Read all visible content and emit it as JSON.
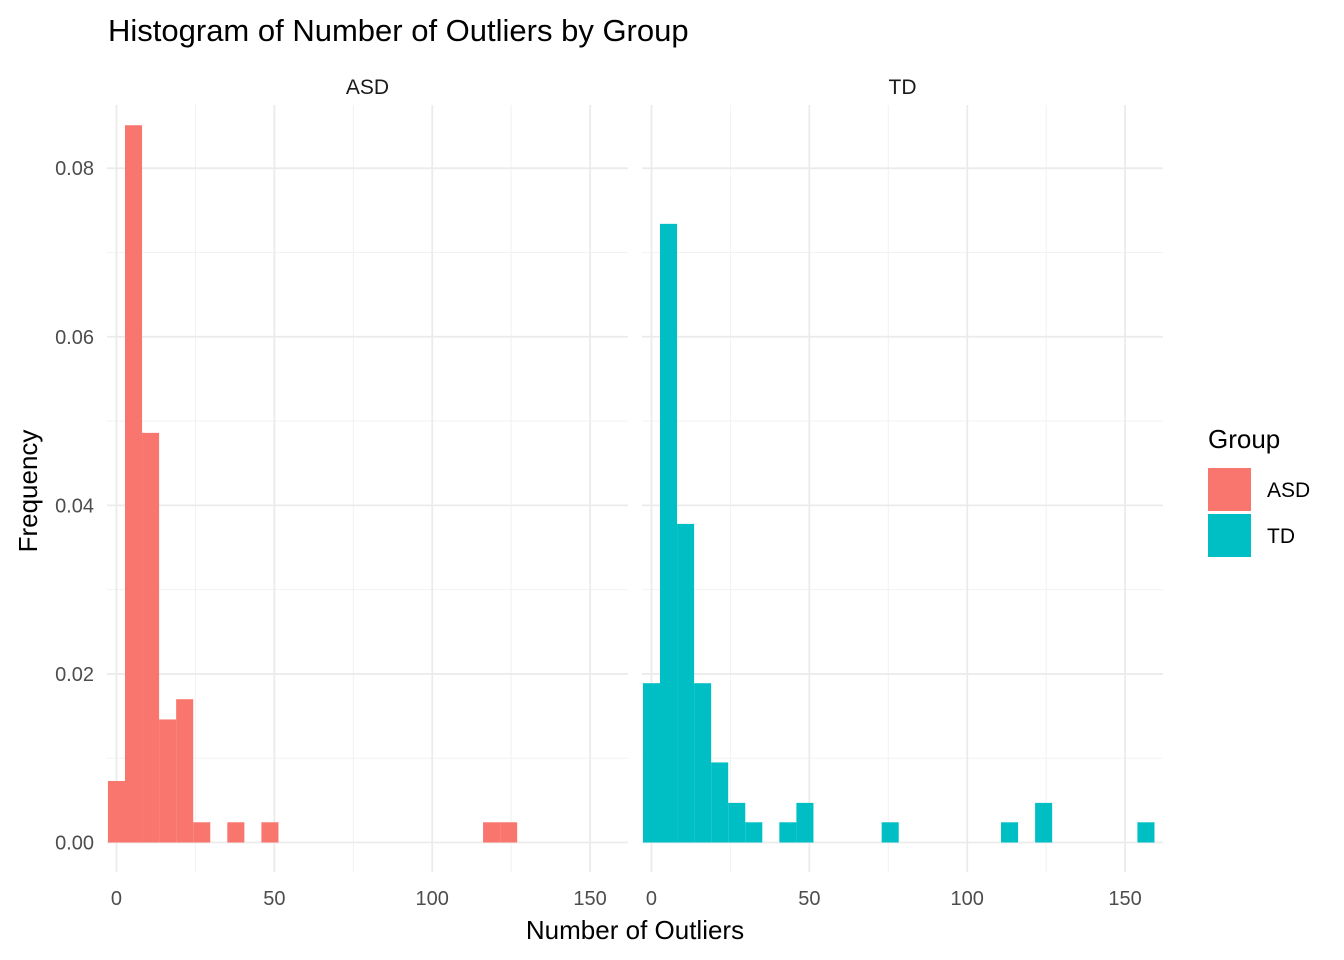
{
  "chart_data": {
    "type": "bar",
    "subtype": "faceted-histogram",
    "title": "Histogram of Number of Outliers by Group",
    "xlabel": "Number of Outliers",
    "ylabel": "Frequency",
    "xlim": [
      -3,
      162
    ],
    "ylim": [
      -0.0035,
      0.0875
    ],
    "x_ticks": [
      0,
      50,
      100,
      150
    ],
    "x_tick_labels": [
      "0",
      "50",
      "100",
      "150"
    ],
    "y_ticks": [
      0.0,
      0.02,
      0.04,
      0.06,
      0.08
    ],
    "y_tick_labels": [
      "0.00",
      "0.02",
      "0.04",
      "0.06",
      "0.08"
    ],
    "grid": true,
    "legend": {
      "title": "Group",
      "position": "right",
      "items": [
        {
          "label": "ASD",
          "color": "#F8766D"
        },
        {
          "label": "TD",
          "color": "#00BFC4"
        }
      ]
    },
    "bin_width": 5.4,
    "facets": [
      {
        "name": "ASD",
        "color": "#F8766D",
        "bins": [
          {
            "x0": -2.7,
            "x1": 2.7,
            "y": 0.0073
          },
          {
            "x0": 2.7,
            "x1": 8.1,
            "y": 0.0851
          },
          {
            "x0": 8.1,
            "x1": 13.5,
            "y": 0.0486
          },
          {
            "x0": 13.5,
            "x1": 18.9,
            "y": 0.0146
          },
          {
            "x0": 18.9,
            "x1": 24.3,
            "y": 0.017
          },
          {
            "x0": 24.3,
            "x1": 29.7,
            "y": 0.0024
          },
          {
            "x0": 35.1,
            "x1": 40.5,
            "y": 0.0024
          },
          {
            "x0": 45.9,
            "x1": 51.3,
            "y": 0.0024
          },
          {
            "x0": 116.1,
            "x1": 121.5,
            "y": 0.0024
          },
          {
            "x0": 121.5,
            "x1": 126.9,
            "y": 0.0024
          }
        ]
      },
      {
        "name": "TD",
        "color": "#00BFC4",
        "bins": [
          {
            "x0": -2.7,
            "x1": 2.7,
            "y": 0.0189
          },
          {
            "x0": 2.7,
            "x1": 8.1,
            "y": 0.0734
          },
          {
            "x0": 8.1,
            "x1": 13.5,
            "y": 0.0378
          },
          {
            "x0": 13.5,
            "x1": 18.9,
            "y": 0.0189
          },
          {
            "x0": 18.9,
            "x1": 24.3,
            "y": 0.0095
          },
          {
            "x0": 24.3,
            "x1": 29.7,
            "y": 0.0047
          },
          {
            "x0": 29.7,
            "x1": 35.1,
            "y": 0.0024
          },
          {
            "x0": 40.5,
            "x1": 45.9,
            "y": 0.0024
          },
          {
            "x0": 45.9,
            "x1": 51.3,
            "y": 0.0047
          },
          {
            "x0": 72.9,
            "x1": 78.3,
            "y": 0.0024
          },
          {
            "x0": 110.7,
            "x1": 116.1,
            "y": 0.0024
          },
          {
            "x0": 121.5,
            "x1": 126.9,
            "y": 0.0047
          },
          {
            "x0": 153.9,
            "x1": 159.3,
            "y": 0.0024
          }
        ]
      }
    ]
  }
}
